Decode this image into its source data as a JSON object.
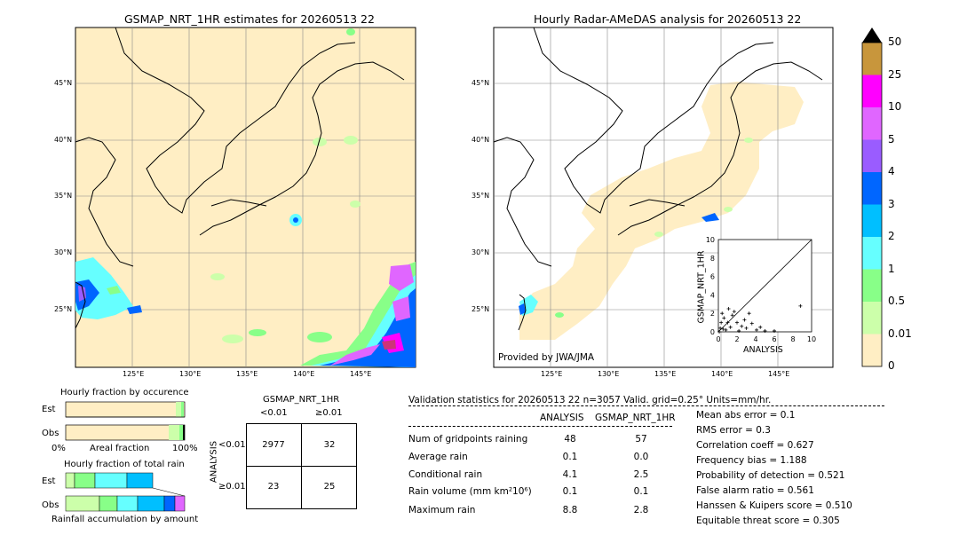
{
  "left_map": {
    "title": "GSMAP_NRT_1HR estimates for 20260513 22",
    "lat_labels": [
      "45°N",
      "40°N",
      "35°N",
      "30°N",
      "25°N"
    ],
    "lon_labels": [
      "125°E",
      "130°E",
      "135°E",
      "140°E",
      "145°E"
    ]
  },
  "right_map": {
    "title": "Hourly Radar-AMeDAS analysis for 20260513 22",
    "lat_labels": [
      "45°N",
      "40°N",
      "35°N",
      "30°N",
      "25°N"
    ],
    "lon_labels": [
      "125°E",
      "130°E",
      "135°E",
      "140°E",
      "145°E"
    ],
    "credit": "Provided by JWA/JMA"
  },
  "colorbar": {
    "labels": [
      "50",
      "25",
      "10",
      "5",
      "4",
      "3",
      "2",
      "1",
      "0.5",
      "0.01",
      "0"
    ],
    "colors": [
      "#c8963c",
      "#ff00ff",
      "#e066ff",
      "#9a5cff",
      "#0066ff",
      "#00bfff",
      "#66ffff",
      "#88ff88",
      "#ccffaa",
      "#ffeec4"
    ]
  },
  "chart_data": [
    {
      "type": "scatter",
      "title": "",
      "xlabel": "ANALYSIS",
      "ylabel": "GSMAP_NRT_1HR",
      "xlim": [
        0,
        10
      ],
      "ylim": [
        0,
        10
      ],
      "xticks": [
        "0",
        "2",
        "4",
        "6",
        "8",
        "10"
      ],
      "yticks": [
        "0",
        "2",
        "4",
        "6",
        "8",
        "10"
      ],
      "points": [
        [
          0.1,
          0.0
        ],
        [
          0.2,
          0.4
        ],
        [
          0.3,
          1.0
        ],
        [
          0.4,
          2.0
        ],
        [
          0.5,
          0.3
        ],
        [
          0.6,
          1.5
        ],
        [
          0.8,
          0.2
        ],
        [
          1.0,
          1.0
        ],
        [
          1.1,
          2.5
        ],
        [
          1.3,
          0.5
        ],
        [
          1.5,
          1.8
        ],
        [
          1.7,
          2.2
        ],
        [
          2.0,
          1.0
        ],
        [
          2.2,
          0.1
        ],
        [
          2.5,
          0.6
        ],
        [
          2.8,
          1.3
        ],
        [
          3.0,
          0.4
        ],
        [
          3.3,
          2.0
        ],
        [
          3.6,
          0.9
        ],
        [
          4.1,
          0.2
        ],
        [
          4.5,
          0.5
        ],
        [
          5.0,
          0.1
        ],
        [
          6.0,
          0.1
        ],
        [
          8.8,
          2.8
        ]
      ]
    },
    {
      "type": "bar",
      "title": "Hourly fraction by occurence",
      "categories": [
        "Est",
        "Obs"
      ],
      "xlabel": "Areal fraction",
      "x_left": "0%",
      "x_right": "100%"
    },
    {
      "type": "bar",
      "title": "Hourly fraction of total rain",
      "categories": [
        "Est",
        "Obs"
      ],
      "xlabel": "Rainfall accumulation by amount"
    }
  ],
  "contingency": {
    "title": "GSMAP_NRT_1HR",
    "col_headers": [
      "<0.01",
      "≥0.01"
    ],
    "row_label": "ANALYSIS",
    "row_headers": [
      "<0.01",
      "≥0.01"
    ],
    "cells": [
      [
        "2977",
        "32"
      ],
      [
        "23",
        "25"
      ]
    ]
  },
  "validation": {
    "header": "Validation statistics for 20260513 22  n=3057 Valid. grid=0.25° Units=mm/hr.",
    "col_analysis": "ANALYSIS",
    "col_gsmap": "GSMAP_NRT_1HR",
    "rows": [
      {
        "label": "Num of gridpoints raining",
        "analysis": "48",
        "gsmap": "57"
      },
      {
        "label": "Average rain",
        "analysis": "0.1",
        "gsmap": "0.0"
      },
      {
        "label": "Conditional rain",
        "analysis": "4.1",
        "gsmap": "2.5"
      },
      {
        "label": "Rain volume (mm km²10⁶)",
        "analysis": "0.1",
        "gsmap": "0.1"
      },
      {
        "label": "Maximum rain",
        "analysis": "8.8",
        "gsmap": "2.8"
      }
    ],
    "scores": [
      "Mean abs error =    0.1",
      "RMS error =    0.3",
      "Correlation coeff =  0.627",
      "Frequency bias =  1.188",
      "Probability of detection =  0.521",
      "False alarm ratio =  0.561",
      "Hanssen & Kuipers score =  0.510",
      "Equitable threat score =  0.305"
    ]
  }
}
